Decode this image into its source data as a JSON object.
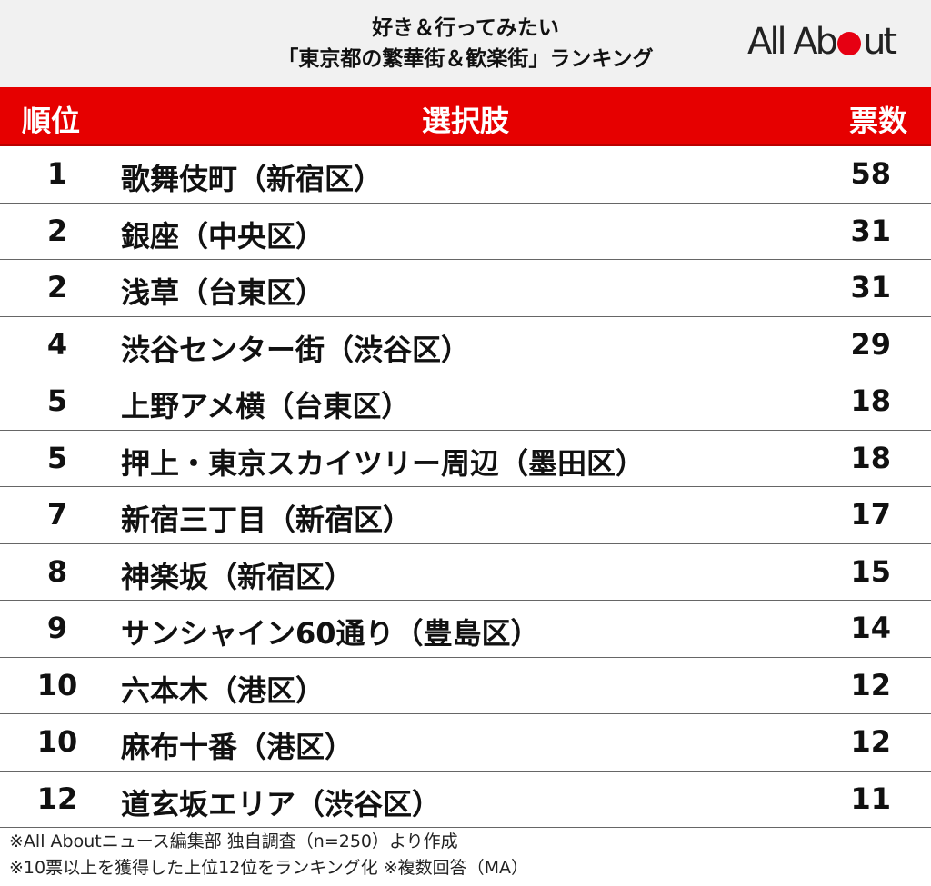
{
  "title": {
    "line1": "好き＆行ってみたい",
    "line2": "「東京都の繁華街＆歓楽街」ランキング"
  },
  "logo": {
    "text": "All Ab",
    "text_end": "ut",
    "brand_color": "#e60012"
  },
  "header": {
    "rank": "順位",
    "choice": "選択肢",
    "votes": "票数",
    "color": "#e60000"
  },
  "rows": [
    {
      "rank": "1",
      "choice": "歌舞伎町（新宿区）",
      "votes": "58"
    },
    {
      "rank": "2",
      "choice": "銀座（中央区）",
      "votes": "31"
    },
    {
      "rank": "2",
      "choice": "浅草（台東区）",
      "votes": "31"
    },
    {
      "rank": "4",
      "choice": "渋谷センター街（渋谷区）",
      "votes": "29"
    },
    {
      "rank": "5",
      "choice": "上野アメ横（台東区）",
      "votes": "18"
    },
    {
      "rank": "5",
      "choice": "押上・東京スカイツリー周辺（墨田区）",
      "votes": "18"
    },
    {
      "rank": "7",
      "choice": "新宿三丁目（新宿区）",
      "votes": "17"
    },
    {
      "rank": "8",
      "choice": "神楽坂（新宿区）",
      "votes": "15"
    },
    {
      "rank": "9",
      "choice": "サンシャイン60通り（豊島区）",
      "votes": "14"
    },
    {
      "rank": "10",
      "choice": "六本木（港区）",
      "votes": "12"
    },
    {
      "rank": "10",
      "choice": "麻布十番（港区）",
      "votes": "12"
    },
    {
      "rank": "12",
      "choice": "道玄坂エリア（渋谷区）",
      "votes": "11"
    }
  ],
  "footer": {
    "note1": "※All Aboutニュース編集部 独自調査（n=250）より作成",
    "note2": "※10票以上を獲得した上位12位をランキング化 ※複数回答（MA）"
  }
}
